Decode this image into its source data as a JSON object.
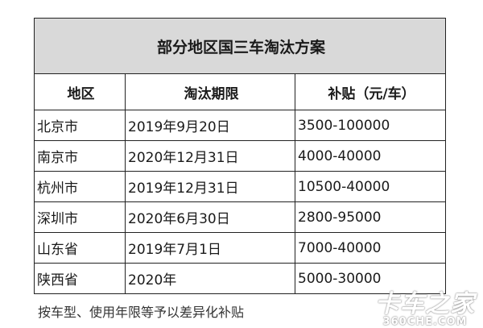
{
  "title": "部分地区国三车淘汰方案",
  "headers": [
    "地区",
    "淘汰期限",
    "补贴（元/车）"
  ],
  "rows": [
    [
      "北京市",
      "2019年9月20日",
      "3500-100000"
    ],
    [
      "南京市",
      "2020年12月31日",
      "4000-40000"
    ],
    [
      "杭州市",
      "2019年12月31日",
      "10500-40000"
    ],
    [
      "深圳市",
      "2020年6月30日",
      "2800-95000"
    ],
    [
      "山东省",
      "2019年7月1日",
      "7000-40000"
    ],
    [
      "陕西省",
      "2020年",
      "5000-30000"
    ]
  ],
  "note": "按车型、使用年限等予以差异化补贴",
  "watermark": {
    "main": "卡车之家",
    "sub": "360CHE.COM"
  }
}
